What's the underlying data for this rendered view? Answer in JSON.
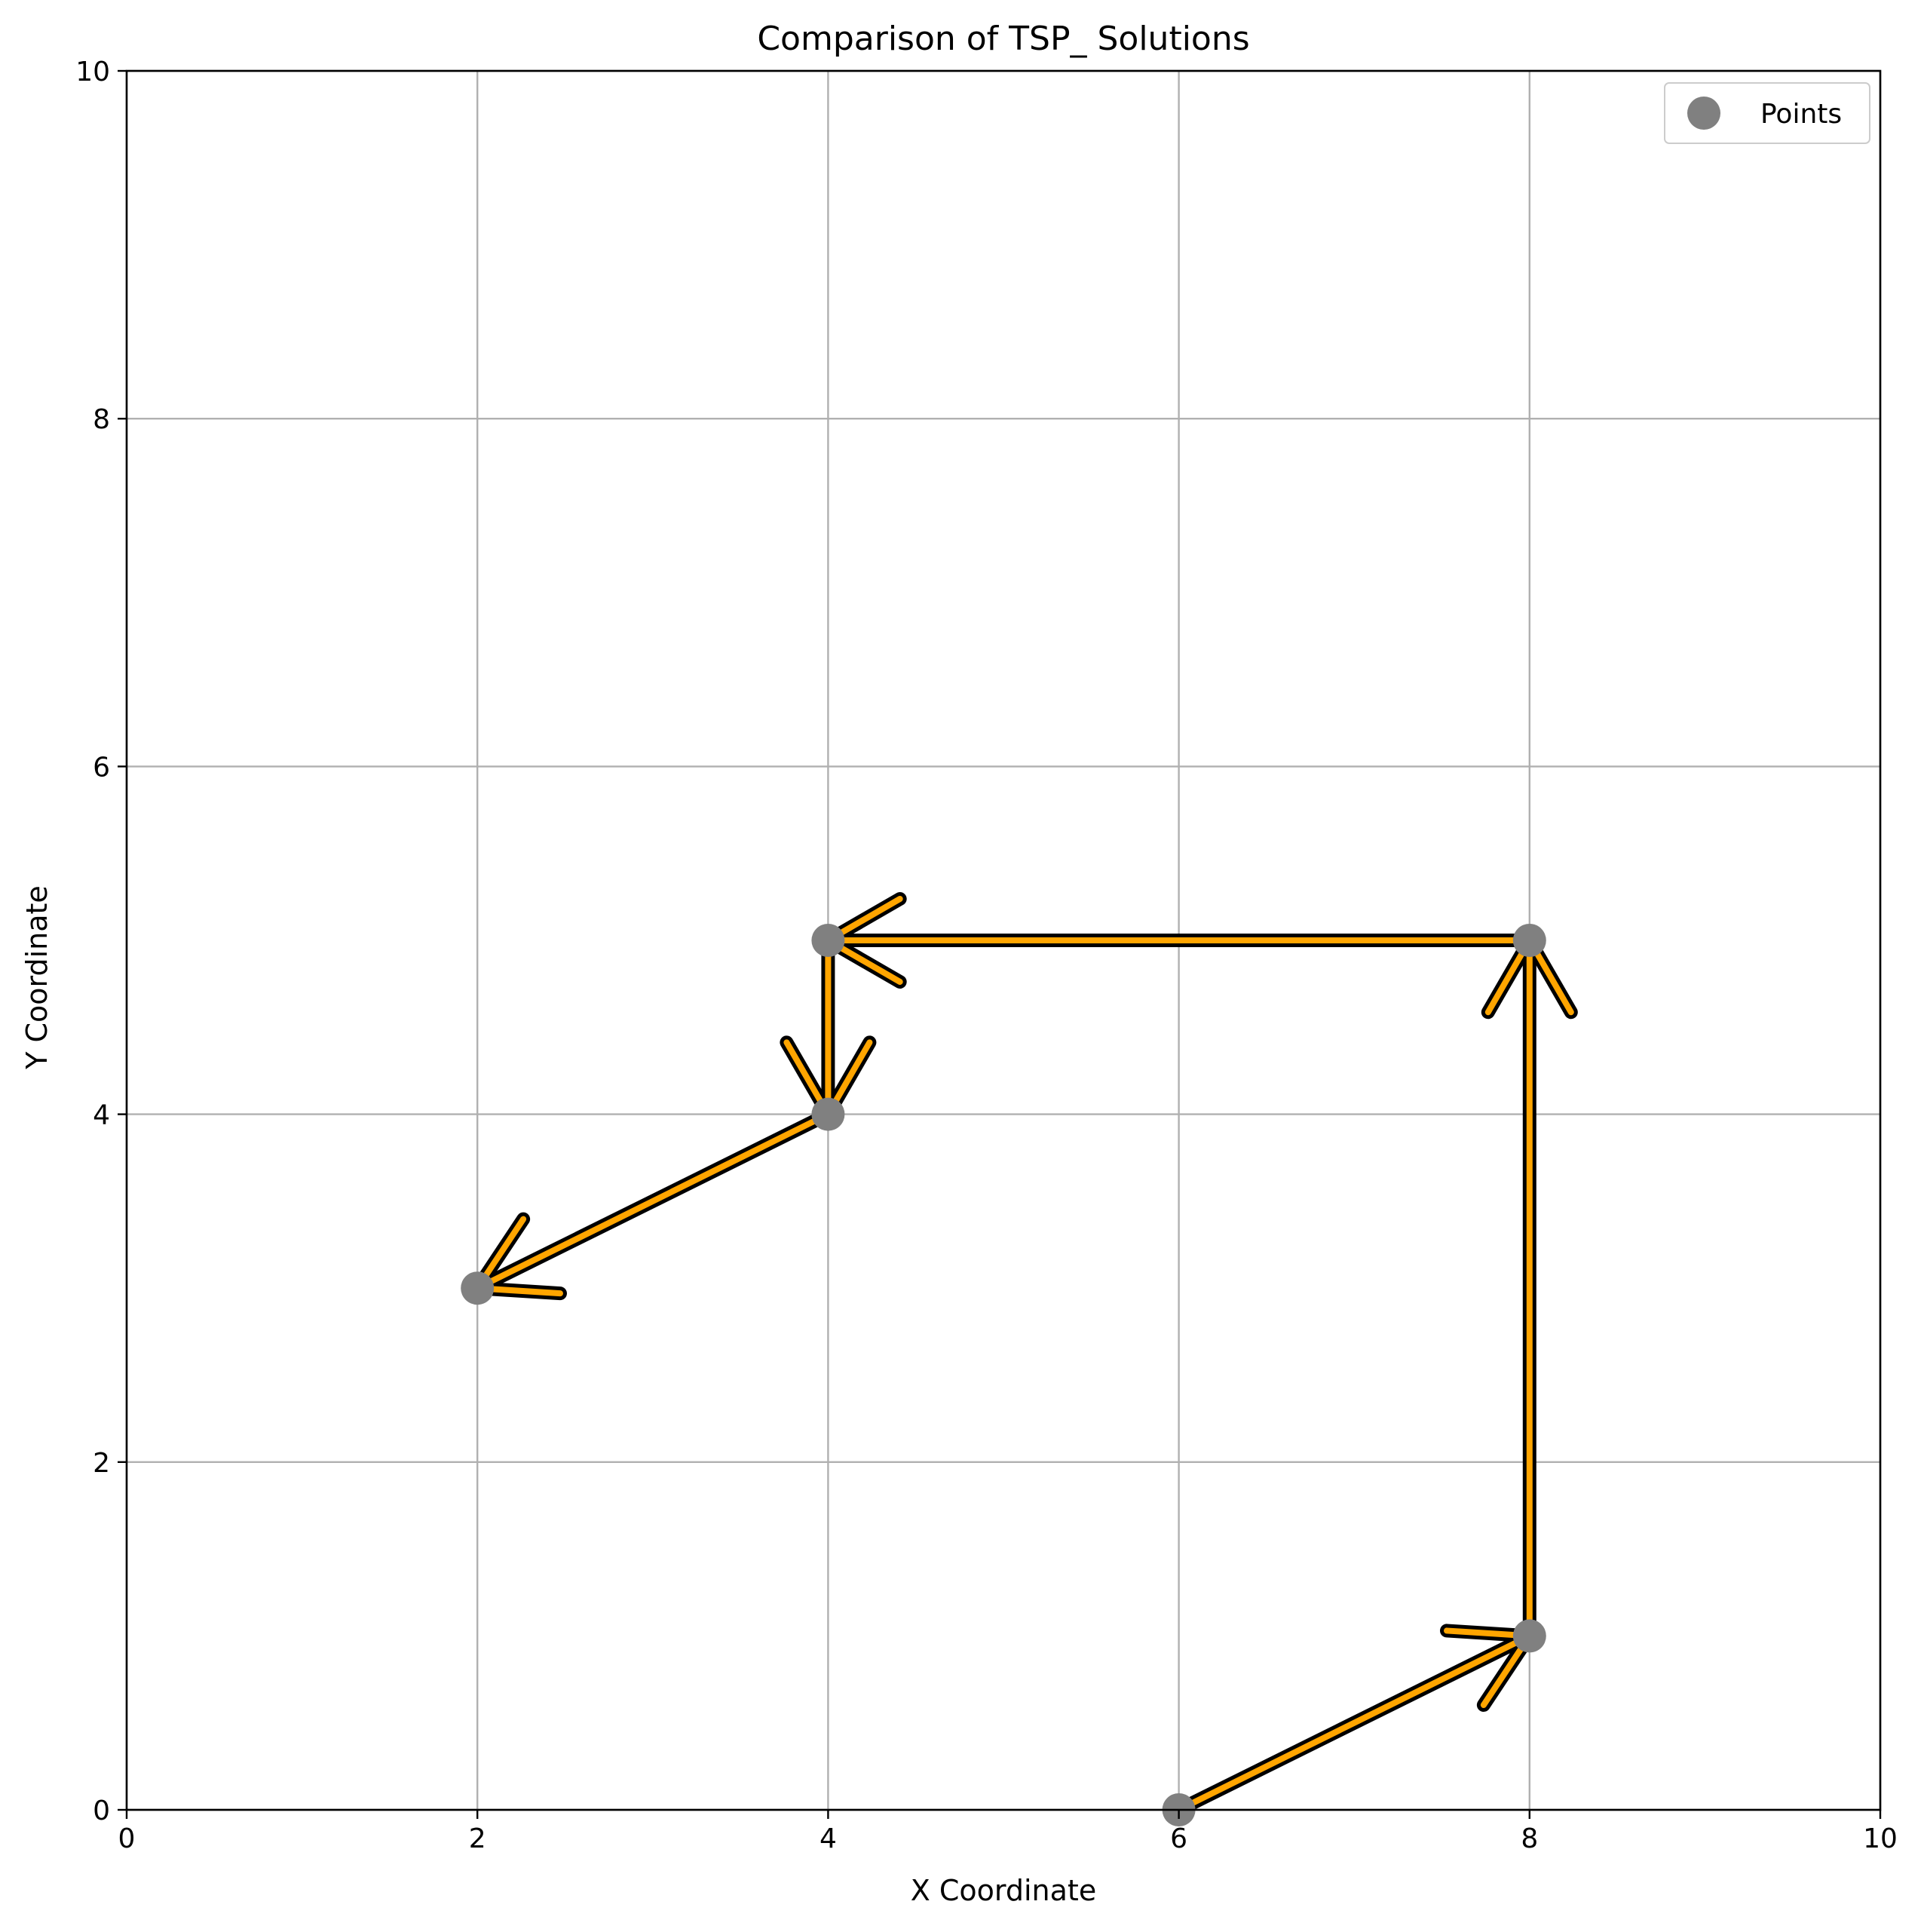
{
  "chart_data": {
    "type": "line",
    "title": "Comparison of TSP_ Solutions",
    "xlabel": "X Coordinate",
    "ylabel": "Y Coordinate",
    "xlim": [
      0,
      10
    ],
    "ylim": [
      0,
      10
    ],
    "xticks": [
      0,
      2,
      4,
      6,
      8,
      10
    ],
    "yticks": [
      0,
      2,
      4,
      6,
      8,
      10
    ],
    "grid": true,
    "legend": {
      "placement": "top-right",
      "entries": [
        "Points"
      ]
    },
    "points": {
      "name": "Points",
      "color": "#808080",
      "x": [
        6,
        8,
        8,
        4,
        4,
        2
      ],
      "y": [
        0,
        1,
        5,
        5,
        4,
        3
      ]
    },
    "routes": [
      {
        "color": "#000000",
        "x": [
          6,
          8,
          8,
          4,
          4,
          2
        ],
        "y": [
          0,
          1,
          5,
          5,
          4,
          3
        ]
      },
      {
        "color": "#ffa500",
        "x": [
          6,
          8,
          8,
          4,
          4,
          2
        ],
        "y": [
          0,
          1,
          5,
          5,
          4,
          3
        ]
      }
    ]
  }
}
